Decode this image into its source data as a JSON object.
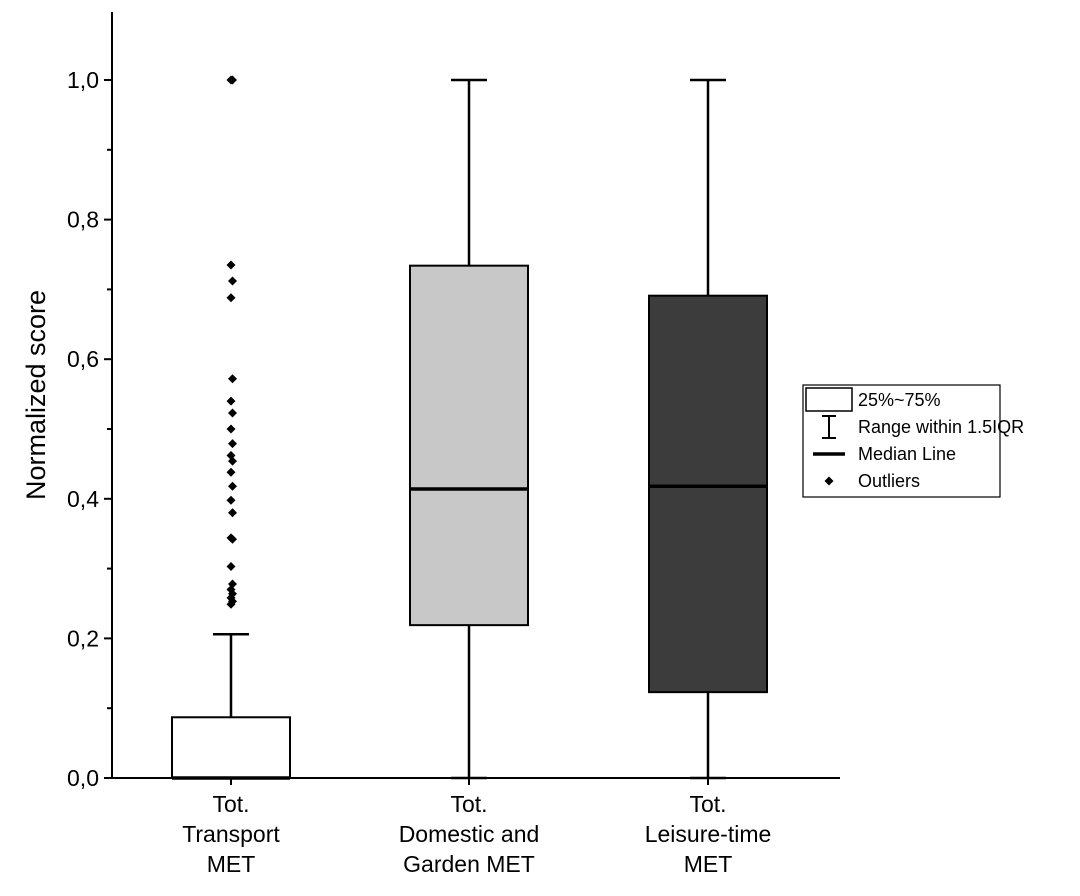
{
  "chart_data": {
    "type": "box",
    "ylabel": "Normalized score",
    "xlabel": "",
    "ylim": [
      0,
      1.1
    ],
    "y_ticks": [
      {
        "value": 0.0,
        "label": "0,0"
      },
      {
        "value": 0.2,
        "label": "0,2"
      },
      {
        "value": 0.4,
        "label": "0,4"
      },
      {
        "value": 0.6,
        "label": "0,6"
      },
      {
        "value": 0.8,
        "label": "0,8"
      },
      {
        "value": 1.0,
        "label": "1,0"
      }
    ],
    "grid": false,
    "legend_position": "right",
    "categories": [
      [
        "Tot.",
        "Transport",
        "MET"
      ],
      [
        "Tot.",
        "Domestic and",
        "Garden MET"
      ],
      [
        "Tot.",
        "Leisure-time",
        "MET"
      ]
    ],
    "boxes": [
      {
        "whisker_low": 0.0,
        "q1": 0.0,
        "median": 0.0,
        "q3": 0.087,
        "whisker_high": 0.206,
        "fill": "#ffffff",
        "outliers": [
          0.249,
          0.253,
          0.258,
          0.264,
          0.27,
          0.278,
          0.303,
          0.342,
          0.344,
          0.38,
          0.398,
          0.418,
          0.438,
          0.454,
          0.462,
          0.479,
          0.5,
          0.523,
          0.54,
          0.572,
          0.688,
          0.712,
          0.735,
          1.0,
          1.0
        ]
      },
      {
        "whisker_low": 0.0,
        "q1": 0.219,
        "median": 0.414,
        "q3": 0.734,
        "whisker_high": 1.0,
        "fill": "#c8c8c8",
        "outliers": []
      },
      {
        "whisker_low": 0.0,
        "q1": 0.123,
        "median": 0.418,
        "q3": 0.691,
        "whisker_high": 1.0,
        "fill": "#3c3c3c",
        "outliers": []
      }
    ],
    "legend": [
      {
        "kind": "box",
        "label": "25%~75%"
      },
      {
        "kind": "whisker",
        "label": "Range within 1.5IQR"
      },
      {
        "kind": "line",
        "label": "Median Line"
      },
      {
        "kind": "marker",
        "label": "Outliers"
      }
    ]
  }
}
